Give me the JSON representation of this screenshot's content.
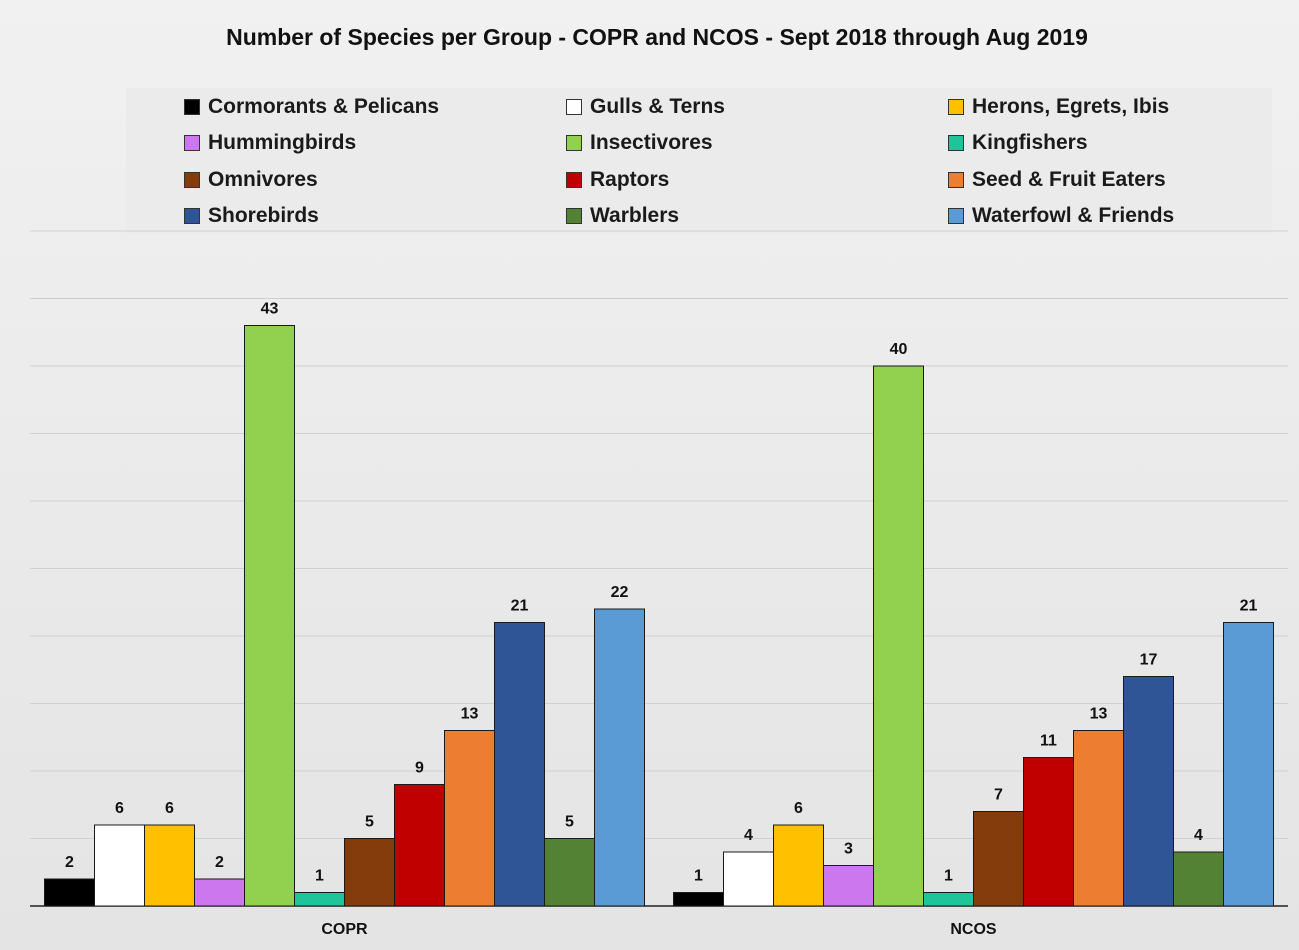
{
  "chart_data": {
    "type": "bar",
    "title": "Number of Species per Group - COPR and NCOS - Sept 2018 through Aug 2019",
    "xlabel": "",
    "ylabel": "",
    "ylim": [
      0,
      50
    ],
    "grid": true,
    "legend_placement": "top",
    "categories": [
      "COPR",
      "NCOS"
    ],
    "series": [
      {
        "name": "Cormorants & Pelicans",
        "color": "#000000",
        "values": [
          2,
          1
        ]
      },
      {
        "name": "Gulls & Terns",
        "color": "#ffffff",
        "values": [
          6,
          4
        ]
      },
      {
        "name": "Herons, Egrets, Ibis",
        "color": "#ffc000",
        "values": [
          6,
          6
        ]
      },
      {
        "name": "Hummingbirds",
        "color": "#cc77ee",
        "values": [
          2,
          3
        ]
      },
      {
        "name": "Insectivores",
        "color": "#92d050",
        "values": [
          43,
          40
        ]
      },
      {
        "name": "Kingfishers",
        "color": "#1fc49a",
        "values": [
          1,
          1
        ]
      },
      {
        "name": "Omnivores",
        "color": "#843c0c",
        "values": [
          5,
          7
        ]
      },
      {
        "name": "Raptors",
        "color": "#c00000",
        "values": [
          9,
          11
        ]
      },
      {
        "name": "Seed & Fruit Eaters",
        "color": "#ed7d31",
        "values": [
          13,
          13
        ]
      },
      {
        "name": "Shorebirds",
        "color": "#2f5597",
        "values": [
          21,
          17
        ]
      },
      {
        "name": "Warblers",
        "color": "#548235",
        "values": [
          5,
          4
        ]
      },
      {
        "name": "Waterfowl & Friends",
        "color": "#5b9bd5",
        "values": [
          22,
          21
        ]
      }
    ]
  }
}
